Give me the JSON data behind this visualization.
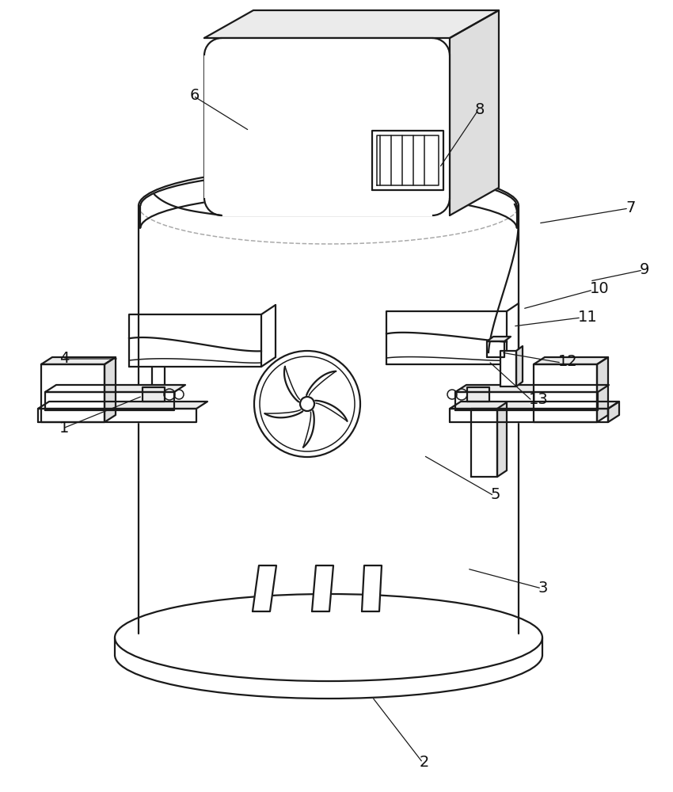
{
  "bg": "#ffffff",
  "lc": "#1a1a1a",
  "lw": 1.6,
  "lw_thin": 1.1,
  "lw_thick": 2.0,
  "fill_light": "#f5f5f5",
  "fill_mid": "#ebebeb",
  "fill_dark": "#dedede",
  "annotations": [
    [
      "1",
      75,
      460,
      180,
      500,
      true
    ],
    [
      "2",
      530,
      38,
      470,
      120,
      true
    ],
    [
      "3",
      680,
      258,
      590,
      282,
      true
    ],
    [
      "4",
      75,
      548,
      150,
      547,
      true
    ],
    [
      "5",
      620,
      375,
      535,
      425,
      true
    ],
    [
      "6",
      240,
      880,
      315,
      835,
      true
    ],
    [
      "7",
      790,
      738,
      680,
      718,
      true
    ],
    [
      "8",
      600,
      862,
      555,
      788,
      true
    ],
    [
      "9",
      808,
      660,
      745,
      645,
      true
    ],
    [
      "10",
      745,
      635,
      660,
      610,
      true
    ],
    [
      "11",
      730,
      600,
      648,
      588,
      true
    ],
    [
      "12",
      705,
      543,
      633,
      555,
      true
    ],
    [
      "13",
      668,
      495,
      617,
      544,
      true
    ]
  ]
}
